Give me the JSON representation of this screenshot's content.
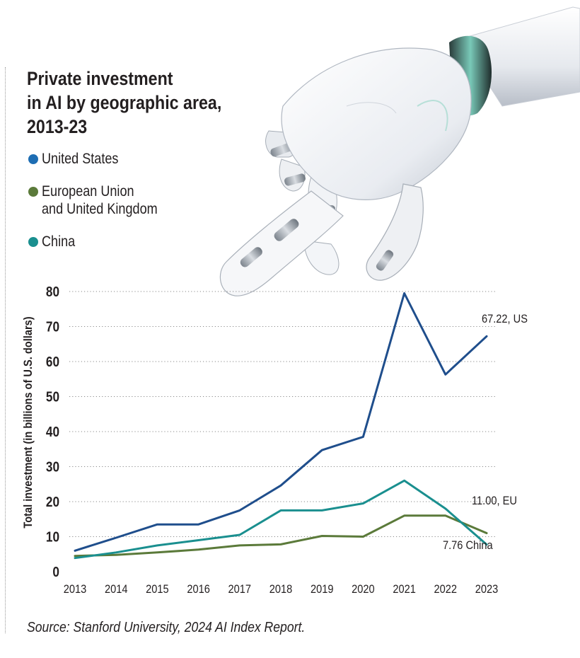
{
  "colors": {
    "us": "#1f4e8c",
    "eu": "#5b7a3a",
    "china": "#1a8f8f",
    "us_dot": "#1d6db3",
    "grid": "#8a8a8a",
    "text": "#231f20"
  },
  "title_lines": [
    "Private investment",
    "in AI by geographic area,",
    "2013-23"
  ],
  "legend": [
    {
      "lines": [
        "United States"
      ],
      "color": "#1d6db3",
      "series": "us"
    },
    {
      "lines": [
        "European Union",
        "and United Kingdom"
      ],
      "color": "#5b7a3a",
      "series": "eu"
    },
    {
      "lines": [
        "China"
      ],
      "color": "#1a8f8f",
      "series": "china"
    }
  ],
  "image": {
    "icon": "robot-hand-pointing-icon"
  },
  "source": "Source: Stanford University, 2024 AI Index Report.",
  "chart_data": {
    "type": "line",
    "title": "Private investment in AI by geographic area, 2013-23",
    "xlabel": "",
    "ylabel": "Total investment (in billions of U.S. dollars)",
    "ylim": [
      0,
      80
    ],
    "yticks": [
      0,
      10,
      20,
      30,
      40,
      50,
      60,
      70,
      80
    ],
    "grid": "horizontal dotted",
    "categories": [
      "2013",
      "2014",
      "2015",
      "2016",
      "2017",
      "2018",
      "2019",
      "2020",
      "2021",
      "2022",
      "2023"
    ],
    "series": [
      {
        "key": "us",
        "name": "United States",
        "values": [
          6.0,
          9.7,
          13.5,
          13.5,
          17.5,
          24.6,
          34.7,
          38.5,
          79.5,
          56.3,
          67.22
        ],
        "end_label": "67.22, US"
      },
      {
        "key": "eu",
        "name": "European Union and United Kingdom",
        "values": [
          4.5,
          4.8,
          5.5,
          6.3,
          7.5,
          7.8,
          10.2,
          10.0,
          16.0,
          16.0,
          11.0
        ],
        "end_label": "11.00, EU"
      },
      {
        "key": "china",
        "name": "China",
        "values": [
          3.9,
          5.5,
          7.5,
          9.0,
          10.5,
          17.5,
          17.5,
          19.5,
          26.0,
          18.0,
          7.76
        ],
        "end_label": "7.76 China"
      }
    ]
  }
}
